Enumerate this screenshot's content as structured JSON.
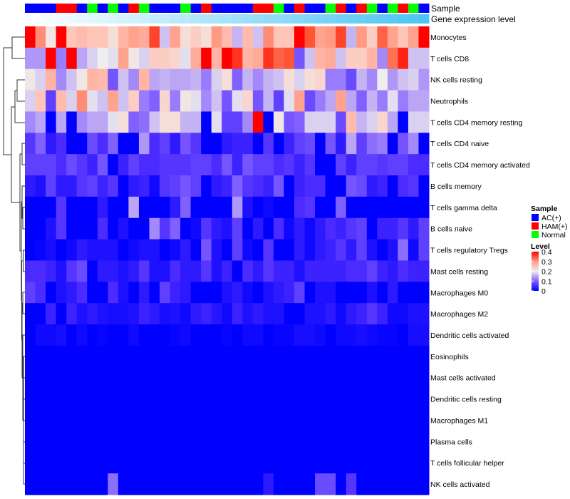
{
  "chart_data": {
    "type": "heatmap",
    "annotation_labels": {
      "sample": "Sample",
      "gene_expression": "Gene expression level"
    },
    "sample_groups": [
      "AC(+)",
      "AC(+)",
      "AC(+)",
      "HAM(+)",
      "HAM(+)",
      "AC(+)",
      "Normal",
      "AC(+)",
      "Normal",
      "AC(+)",
      "HAM(+)",
      "Normal",
      "AC(+)",
      "AC(+)",
      "AC(+)",
      "Normal",
      "AC(+)",
      "HAM(+)",
      "AC(+)",
      "AC(+)",
      "AC(+)",
      "AC(+)",
      "HAM(+)",
      "HAM(+)",
      "Normal",
      "AC(+)",
      "HAM(+)",
      "AC(+)",
      "AC(+)",
      "Normal",
      "HAM(+)",
      "AC(+)",
      "HAM(+)",
      "Normal",
      "AC(+)",
      "Normal",
      "HAM(+)",
      "Normal",
      "AC(+)"
    ],
    "gene_expression_level": [
      0.0,
      0.03,
      0.05,
      0.08,
      0.1,
      0.13,
      0.16,
      0.18,
      0.21,
      0.24,
      0.26,
      0.29,
      0.32,
      0.34,
      0.37,
      0.39,
      0.42,
      0.45,
      0.47,
      0.5,
      0.53,
      0.55,
      0.58,
      0.61,
      0.63,
      0.66,
      0.68,
      0.71,
      0.74,
      0.76,
      0.79,
      0.82,
      0.84,
      0.87,
      0.89,
      0.92,
      0.95,
      0.97,
      1.0
    ],
    "rows": [
      "Monocytes",
      "T cells CD8",
      "NK cells resting",
      "Neutrophils",
      "T cells CD4 memory resting",
      "T cells CD4 naive",
      "T cells CD4 memory activated",
      "B cells memory",
      "T cells gamma delta",
      "B cells naive",
      "T cells regulatory  Tregs",
      "Mast cells resting",
      "Macrophages M0",
      "Macrophages M2",
      "Dendritic cells activated",
      "Eosinophils",
      "Mast cells activated",
      "Dendritic cells resting",
      "Macrophages M1",
      "Plasma cells",
      "T cells follicular helper",
      "NK cells activated"
    ],
    "values": [
      [
        0.4,
        0.31,
        0.21,
        0.4,
        0.25,
        0.26,
        0.25,
        0.25,
        0.22,
        0.27,
        0.29,
        0.28,
        0.36,
        0.17,
        0.29,
        0.22,
        0.24,
        0.22,
        0.3,
        0.26,
        0.16,
        0.26,
        0.17,
        0.31,
        0.25,
        0.25,
        0.4,
        0.35,
        0.29,
        0.3,
        0.36,
        0.16,
        0.3,
        0.24,
        0.34,
        0.29,
        0.25,
        0.29,
        0.4
      ],
      [
        0.14,
        0.14,
        0.4,
        0.12,
        0.4,
        0.15,
        0.18,
        0.2,
        0.19,
        0.29,
        0.21,
        0.18,
        0.24,
        0.24,
        0.23,
        0.19,
        0.28,
        0.4,
        0.27,
        0.4,
        0.37,
        0.27,
        0.28,
        0.37,
        0.34,
        0.35,
        0.09,
        0.17,
        0.27,
        0.28,
        0.17,
        0.24,
        0.24,
        0.27,
        0.13,
        0.33,
        0.38,
        0.17,
        0.17
      ],
      [
        0.21,
        0.18,
        0.27,
        0.13,
        0.17,
        0.21,
        0.27,
        0.26,
        0.09,
        0.17,
        0.13,
        0.27,
        0.15,
        0.16,
        0.15,
        0.15,
        0.16,
        0.12,
        0.18,
        0.22,
        0.1,
        0.16,
        0.13,
        0.16,
        0.17,
        0.22,
        0.18,
        0.22,
        0.23,
        0.12,
        0.12,
        0.08,
        0.16,
        0.13,
        0.2,
        0.14,
        0.17,
        0.18,
        0.14
      ],
      [
        0.18,
        0.25,
        0.07,
        0.26,
        0.18,
        0.31,
        0.19,
        0.17,
        0.29,
        0.17,
        0.24,
        0.12,
        0.1,
        0.23,
        0.12,
        0.21,
        0.19,
        0.13,
        0.17,
        0.09,
        0.19,
        0.23,
        0.09,
        0.16,
        0.07,
        0.19,
        0.29,
        0.08,
        0.12,
        0.15,
        0.29,
        0.15,
        0.1,
        0.16,
        0.12,
        0.19,
        0.12,
        0.15,
        0.15
      ],
      [
        0.13,
        0.15,
        0,
        0.15,
        0,
        0.13,
        0.15,
        0.15,
        0.19,
        0.22,
        0.1,
        0.11,
        0.17,
        0.22,
        0.22,
        0.16,
        0.16,
        0,
        0.19,
        0.07,
        0.07,
        0.13,
        0.4,
        0,
        0.21,
        0.09,
        0.1,
        0.18,
        0.18,
        0.18,
        0.08,
        0.26,
        0.16,
        0.18,
        0.23,
        0.15,
        0,
        0.18,
        0.18
      ],
      [
        0.06,
        0.1,
        0.03,
        0.05,
        0,
        0,
        0.08,
        0.05,
        0.1,
        0,
        0,
        0.14,
        0.05,
        0.07,
        0.03,
        0.09,
        0.06,
        0,
        0,
        0.03,
        0.04,
        0.04,
        0,
        0.06,
        0,
        0.04,
        0.07,
        0.08,
        0,
        0.09,
        0.03,
        0.15,
        0.07,
        0.11,
        0.12,
        0,
        0.09,
        0.13,
        0
      ],
      [
        0.07,
        0.07,
        0.07,
        0.05,
        0.08,
        0.06,
        0.04,
        0.09,
        0,
        0.04,
        0.07,
        0.05,
        0.05,
        0.06,
        0.06,
        0.06,
        0.07,
        0.07,
        0.05,
        0.09,
        0.04,
        0.09,
        0.07,
        0.07,
        0.05,
        0.06,
        0.04,
        0.06,
        0,
        0,
        0.07,
        0.04,
        0.07,
        0.07,
        0.06,
        0.07,
        0.07,
        0.05,
        0.05
      ],
      [
        0.03,
        0.02,
        0.07,
        0.03,
        0.03,
        0.06,
        0.07,
        0.04,
        0.06,
        0,
        0.03,
        0.04,
        0.01,
        0.06,
        0.07,
        0.09,
        0.07,
        0,
        0.03,
        0.04,
        0.1,
        0.06,
        0.05,
        0.04,
        0.09,
        0,
        0.04,
        0.05,
        0.05,
        0,
        0,
        0.09,
        0.08,
        0.03,
        0.04,
        0,
        0.05,
        0.06,
        0
      ],
      [
        0,
        0,
        0,
        0.06,
        0,
        0,
        0,
        0.03,
        0,
        0,
        0.15,
        0,
        0,
        0,
        0.03,
        0.1,
        0,
        0,
        0,
        0,
        0.14,
        0.02,
        0,
        0.01,
        0,
        0,
        0.05,
        0.06,
        0,
        0,
        0.1,
        0,
        0,
        0,
        0,
        0,
        0,
        0,
        0
      ],
      [
        0,
        0,
        0.02,
        0.06,
        0,
        0,
        0,
        0.05,
        0,
        0.02,
        0,
        0,
        0.13,
        0.06,
        0.1,
        0,
        0.01,
        0.06,
        0.03,
        0.02,
        0.07,
        0,
        0.03,
        0,
        0.05,
        0.01,
        0.03,
        0.01,
        0.03,
        0.05,
        0.04,
        0.06,
        0.07,
        0,
        0.04,
        0.04,
        0.06,
        0.03,
        0.07
      ],
      [
        0,
        0.005,
        0.015,
        0,
        0.01,
        0.03,
        0.02,
        0.02,
        0.02,
        0,
        0.01,
        0.02,
        0.02,
        0,
        0.01,
        0.03,
        0,
        0.09,
        0.02,
        0,
        0.07,
        0.01,
        0,
        0.06,
        0,
        0,
        0.03,
        0.01,
        0.03,
        0.04,
        0.06,
        0.03,
        0.07,
        0.02,
        0,
        0.02,
        0.11,
        0.01,
        0.07
      ],
      [
        0.05,
        0.05,
        0.04,
        0.02,
        0.06,
        0.08,
        0,
        0.03,
        0.03,
        0.02,
        0.03,
        0.06,
        0.02,
        0.02,
        0.05,
        0.03,
        0.03,
        0.06,
        0.02,
        0.04,
        0,
        0.05,
        0.03,
        0.06,
        0.04,
        0.04,
        0.02,
        0.04,
        0.04,
        0.04,
        0.04,
        0.05,
        0.05,
        0.07,
        0.04,
        0.03,
        0.05,
        0.04,
        0.04
      ],
      [
        0.07,
        0.05,
        0,
        0.02,
        0.03,
        0.05,
        0,
        0,
        0.05,
        0.02,
        0,
        0.03,
        0,
        0.07,
        0.04,
        0.03,
        0,
        0,
        0,
        0.02,
        0.03,
        0.01,
        0,
        0.02,
        0.03,
        0.04,
        0.07,
        0,
        0.02,
        0.02,
        0,
        0,
        0,
        0.02,
        0,
        0.03,
        0,
        0,
        0
      ],
      [
        0,
        0,
        0.04,
        0,
        0.04,
        0.02,
        0.03,
        0.02,
        0.015,
        0.015,
        0.02,
        0.04,
        0.03,
        0.015,
        0.02,
        0.01,
        0.03,
        0.04,
        0.025,
        0.01,
        0.04,
        0.02,
        0.03,
        0.02,
        0.02,
        0,
        0,
        0.02,
        0.02,
        0.03,
        0.01,
        0.03,
        0.04,
        0.06,
        0.04,
        0.01,
        0.01,
        0.02,
        0.02
      ],
      [
        0,
        0.01,
        0.01,
        0.015,
        0,
        0.01,
        0,
        0.005,
        0,
        0,
        0.01,
        0,
        0,
        0,
        0.005,
        0.01,
        0,
        0,
        0,
        0.005,
        0,
        0.01,
        0.01,
        0,
        0.005,
        0.005,
        0.015,
        0.015,
        0.01,
        0,
        0.01,
        0.01,
        0.015,
        0.01,
        0.005,
        0.005,
        0,
        0.015,
        0.015
      ],
      [
        0,
        0,
        0,
        0,
        0,
        0,
        0,
        0,
        0,
        0,
        0,
        0,
        0,
        0,
        0,
        0,
        0,
        0,
        0,
        0,
        0,
        0,
        0,
        0,
        0,
        0,
        0,
        0,
        0,
        0,
        0,
        0,
        0,
        0,
        0,
        0,
        0,
        0,
        0
      ],
      [
        0,
        0,
        0,
        0,
        0,
        0,
        0,
        0,
        0,
        0,
        0,
        0,
        0,
        0,
        0,
        0,
        0,
        0,
        0,
        0,
        0,
        0,
        0,
        0,
        0,
        0,
        0,
        0,
        0,
        0,
        0,
        0,
        0,
        0,
        0,
        0,
        0,
        0,
        0
      ],
      [
        0,
        0,
        0,
        0,
        0,
        0,
        0,
        0,
        0,
        0,
        0,
        0,
        0,
        0,
        0,
        0,
        0,
        0,
        0,
        0,
        0,
        0,
        0,
        0,
        0,
        0,
        0,
        0,
        0,
        0,
        0,
        0,
        0,
        0,
        0,
        0,
        0,
        0,
        0
      ],
      [
        0,
        0,
        0,
        0,
        0,
        0,
        0,
        0,
        0,
        0,
        0,
        0,
        0,
        0,
        0,
        0,
        0,
        0,
        0,
        0,
        0,
        0,
        0,
        0,
        0,
        0,
        0,
        0,
        0,
        0,
        0,
        0,
        0,
        0,
        0,
        0,
        0,
        0,
        0
      ],
      [
        0,
        0,
        0,
        0,
        0,
        0,
        0,
        0,
        0,
        0,
        0,
        0,
        0,
        0,
        0,
        0,
        0,
        0,
        0,
        0,
        0,
        0,
        0,
        0,
        0,
        0,
        0,
        0,
        0,
        0,
        0,
        0,
        0,
        0,
        0,
        0,
        0,
        0,
        0
      ],
      [
        0,
        0,
        0,
        0,
        0,
        0,
        0,
        0,
        0,
        0,
        0,
        0,
        0,
        0,
        0,
        0,
        0,
        0,
        0,
        0,
        0,
        0,
        0,
        0,
        0,
        0,
        0,
        0,
        0,
        0,
        0,
        0,
        0,
        0,
        0,
        0,
        0,
        0,
        0
      ],
      [
        0,
        0,
        0,
        0,
        0,
        0,
        0,
        0,
        0.11,
        0,
        0,
        0,
        0,
        0,
        0,
        0,
        0,
        0,
        0,
        0,
        0,
        0,
        0,
        0.03,
        0,
        0,
        0,
        0,
        0.08,
        0.08,
        0,
        0.06,
        0,
        0,
        0,
        0,
        0,
        0,
        0
      ]
    ],
    "value_range": [
      0,
      0.4
    ],
    "legend": {
      "sample_title": "Sample",
      "sample_entries": [
        {
          "label": "AC(+)",
          "color": "#0000FF"
        },
        {
          "label": "HAM(+)",
          "color": "#FF0000"
        },
        {
          "label": "Normal",
          "color": "#00FF00"
        }
      ],
      "level_title": "Level",
      "level_ticks": [
        "0.4",
        "0.3",
        "0.2",
        "0.1",
        "0"
      ],
      "placement": "right"
    },
    "colors": {
      "low": "#0000FF",
      "mid": "#EEEEEE",
      "high": "#FF0000",
      "gene_low": "#FFFFFF",
      "gene_high": "#4CC4F2"
    }
  }
}
